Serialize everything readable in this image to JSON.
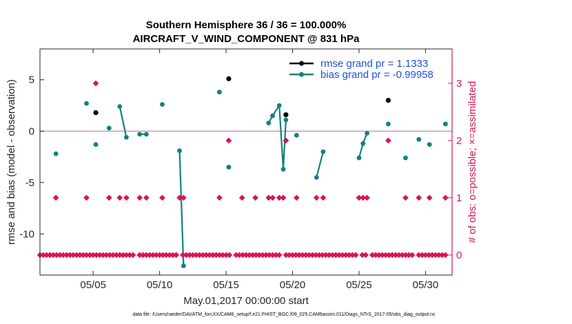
{
  "chart_data": {
    "type": "line",
    "title_line1": "Southern Hemisphere 36 / 36 = 100.000%",
    "title_line2": "AIRCRAFT_V_WIND_COMPONENT @ 831 hPa",
    "xlabel": "May.01,2017 00:00:00 start",
    "ylabel_left": "rmse and bias (model - observation)",
    "ylabel_right": "# of obs: o=possible; ×=assimilated",
    "footer": "data file: /Users/raeder/DAI/ATM_forcXX/CAM6_setup/f.e21.FHIST_BGC.f09_025.CAM6assim.011/Diags_NTrS_2017-05/obs_diag_output.nc",
    "x_range": [
      1,
      32
    ],
    "x_ticks": [
      5,
      10,
      15,
      20,
      25,
      30
    ],
    "x_tick_labels": [
      "05/05",
      "05/10",
      "05/15",
      "05/20",
      "05/25",
      "05/30"
    ],
    "y_left_range": [
      -14,
      8
    ],
    "y_left_ticks": [
      5,
      0,
      -5,
      -10
    ],
    "y_left_tick_labels": [
      "5",
      "0",
      "-5",
      "-10"
    ],
    "y_right_range": [
      -0.35,
      3.6
    ],
    "y_right_ticks": [
      0,
      1,
      2,
      3
    ],
    "y_right_tick_labels": [
      "0",
      "1",
      "2",
      "3"
    ],
    "zero_line": 0,
    "legend": [
      {
        "label": "rmse grand pr = 1.1333",
        "color": "#000000"
      },
      {
        "label": "bias grand pr = -0.99958",
        "color": "#138080"
      }
    ],
    "colors": {
      "rmse": "#000000",
      "bias": "#138080",
      "obs": "#d8145a",
      "zero": "#c6a4b8",
      "legend_text": "#1f4fd8"
    },
    "series": [
      {
        "name": "rmse",
        "points": [
          [
            5.2,
            1.8
          ],
          [
            15.2,
            5.1
          ],
          [
            19.5,
            1.6
          ],
          [
            27.2,
            3.0
          ]
        ]
      },
      {
        "name": "bias",
        "points": [
          [
            2.2,
            -2.2
          ],
          [
            4.5,
            2.7
          ],
          [
            5.2,
            -1.3
          ],
          [
            6.2,
            0.3
          ],
          [
            7.0,
            2.4
          ],
          [
            7.5,
            -0.6
          ],
          [
            8.5,
            -0.3
          ],
          [
            9.0,
            -0.3
          ],
          [
            10.2,
            2.6
          ],
          [
            11.5,
            -1.9
          ],
          [
            11.8,
            -13.1
          ],
          [
            14.5,
            3.8
          ],
          [
            15.2,
            -3.5
          ],
          [
            18.2,
            0.8
          ],
          [
            18.5,
            1.5
          ],
          [
            19.0,
            2.5
          ],
          [
            19.3,
            -3.7
          ],
          [
            19.5,
            1.1
          ],
          [
            20.3,
            -0.4
          ],
          [
            21.8,
            -4.5
          ],
          [
            22.3,
            -2.0
          ],
          [
            25.0,
            -2.6
          ],
          [
            25.3,
            -1.2
          ],
          [
            25.6,
            -0.2
          ],
          [
            27.2,
            0.7
          ],
          [
            28.5,
            -2.6
          ],
          [
            29.5,
            -0.8
          ],
          [
            30.3,
            -1.3
          ],
          [
            31.5,
            0.7
          ]
        ]
      },
      {
        "name": "obs_possible",
        "points": [
          [
            1,
            0
          ],
          [
            1.25,
            0
          ],
          [
            1.5,
            0
          ],
          [
            1.75,
            0
          ],
          [
            2,
            0
          ],
          [
            2.25,
            0
          ],
          [
            2.5,
            0
          ],
          [
            2.75,
            0
          ],
          [
            3,
            0
          ],
          [
            3.25,
            0
          ],
          [
            3.5,
            0
          ],
          [
            3.75,
            0
          ],
          [
            4,
            0
          ],
          [
            4.25,
            0
          ],
          [
            4.5,
            0
          ],
          [
            4.75,
            0
          ],
          [
            5,
            0
          ],
          [
            5.25,
            0
          ],
          [
            5.5,
            0
          ],
          [
            5.75,
            0
          ],
          [
            6,
            0
          ],
          [
            6.25,
            0
          ],
          [
            6.5,
            0
          ],
          [
            6.75,
            0
          ],
          [
            7,
            0
          ],
          [
            7.25,
            0
          ],
          [
            7.5,
            0
          ],
          [
            7.75,
            0
          ],
          [
            8,
            0
          ],
          [
            8.5,
            0
          ],
          [
            8.75,
            0
          ],
          [
            9,
            0
          ],
          [
            9.25,
            0
          ],
          [
            9.5,
            0
          ],
          [
            9.75,
            0
          ],
          [
            10,
            0
          ],
          [
            10.25,
            0
          ],
          [
            10.5,
            0
          ],
          [
            10.75,
            0
          ],
          [
            11,
            0
          ],
          [
            11.25,
            0
          ],
          [
            11.75,
            0
          ],
          [
            12,
            0
          ],
          [
            12.25,
            0
          ],
          [
            12.5,
            0
          ],
          [
            12.75,
            0
          ],
          [
            13,
            0
          ],
          [
            13.25,
            0
          ],
          [
            13.5,
            0
          ],
          [
            13.75,
            0
          ],
          [
            14,
            0
          ],
          [
            14.25,
            0
          ],
          [
            14.5,
            0
          ],
          [
            14.75,
            0
          ],
          [
            15,
            0
          ],
          [
            15.25,
            0
          ],
          [
            15.75,
            0
          ],
          [
            16,
            0
          ],
          [
            16.25,
            0
          ],
          [
            16.5,
            0
          ],
          [
            16.75,
            0
          ],
          [
            17,
            0
          ],
          [
            17.25,
            0
          ],
          [
            17.5,
            0
          ],
          [
            17.75,
            0
          ],
          [
            18,
            0
          ],
          [
            18.25,
            0
          ],
          [
            18.5,
            0
          ],
          [
            18.75,
            0
          ],
          [
            19,
            0
          ],
          [
            19.5,
            0
          ],
          [
            19.75,
            0
          ],
          [
            20,
            0
          ],
          [
            20.25,
            0
          ],
          [
            20.5,
            0
          ],
          [
            20.75,
            0
          ],
          [
            21,
            0
          ],
          [
            21.25,
            0
          ],
          [
            21.5,
            0
          ],
          [
            21.75,
            0
          ],
          [
            22,
            0
          ],
          [
            22.25,
            0
          ],
          [
            22.5,
            0
          ],
          [
            22.75,
            0
          ],
          [
            23,
            0
          ],
          [
            23.25,
            0
          ],
          [
            23.5,
            0
          ],
          [
            23.75,
            0
          ],
          [
            24,
            0
          ],
          [
            24.25,
            0
          ],
          [
            24.5,
            0
          ],
          [
            24.75,
            0
          ],
          [
            25.25,
            0
          ],
          [
            25.5,
            0
          ],
          [
            26,
            0
          ],
          [
            26.25,
            0
          ],
          [
            26.5,
            0
          ],
          [
            26.75,
            0
          ],
          [
            27,
            0
          ],
          [
            27.25,
            0
          ],
          [
            27.5,
            0
          ],
          [
            27.75,
            0
          ],
          [
            28,
            0
          ],
          [
            28.25,
            0
          ],
          [
            28.5,
            0
          ],
          [
            28.75,
            0
          ],
          [
            29,
            0
          ],
          [
            29.5,
            0
          ],
          [
            29.75,
            0
          ],
          [
            30,
            0
          ],
          [
            30.25,
            0
          ],
          [
            30.5,
            0
          ],
          [
            30.75,
            0
          ],
          [
            31,
            0
          ],
          [
            31.25,
            0
          ],
          [
            31.5,
            0
          ]
        ]
      },
      {
        "name": "obs_assimilated",
        "points": [
          [
            2.2,
            1
          ],
          [
            4.5,
            1
          ],
          [
            5.2,
            3
          ],
          [
            6.2,
            1
          ],
          [
            7.0,
            1
          ],
          [
            7.5,
            1
          ],
          [
            8.5,
            1
          ],
          [
            9.0,
            1
          ],
          [
            10.2,
            1
          ],
          [
            11.5,
            1
          ],
          [
            11.8,
            1
          ],
          [
            14.5,
            1
          ],
          [
            15.2,
            2
          ],
          [
            16.2,
            1
          ],
          [
            17.2,
            1
          ],
          [
            18.2,
            1
          ],
          [
            18.5,
            1
          ],
          [
            19.0,
            1
          ],
          [
            19.3,
            1
          ],
          [
            19.5,
            2
          ],
          [
            20.3,
            1
          ],
          [
            21.8,
            1
          ],
          [
            22.3,
            1
          ],
          [
            25.0,
            1
          ],
          [
            25.3,
            1
          ],
          [
            25.6,
            1
          ],
          [
            27.2,
            2
          ],
          [
            28.5,
            1
          ],
          [
            29.5,
            1
          ],
          [
            30.3,
            1
          ],
          [
            31.5,
            1
          ]
        ]
      }
    ]
  }
}
